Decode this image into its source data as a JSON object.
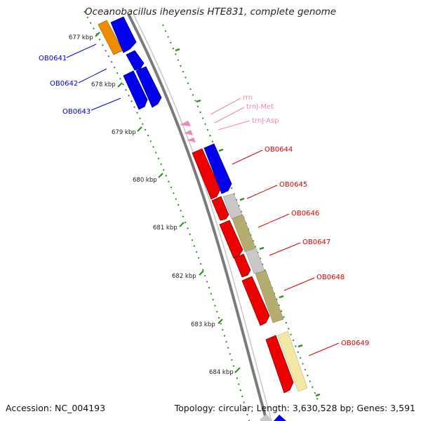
{
  "title": "Oceanobacillus iheyensis HTE831, complete genome",
  "accession_label": "Accession: NC_004193",
  "topology_label": "Topology: circular; Length: 3,630,528 bp; Genes: 3,591",
  "scale_labels": [
    "677 kbp",
    "678 kbp",
    "679 kbp",
    "680 kbp",
    "681 kbp",
    "682 kbp",
    "683 kbp",
    "684 kbp"
  ],
  "colors": {
    "backbone": "#8a8a8a",
    "scale": "#2e8b22",
    "blue_gene": "#0000ee",
    "red_gene": "#ee0000",
    "orange_gene": "#f08c00",
    "rna": "#ee88bb",
    "khaki": "#b5ad70",
    "grey": "#c8c8c8",
    "pale_yellow": "#f2e7a4"
  },
  "features": [
    {
      "label": "OB0641",
      "strand": "blue"
    },
    {
      "label": "OB0642",
      "strand": "blue"
    },
    {
      "label": "OB0643",
      "strand": "blue"
    },
    {
      "label": "rrn",
      "strand": "rna"
    },
    {
      "label": "trnJ-Met",
      "strand": "rna"
    },
    {
      "label": "trnJ-Asp",
      "strand": "rna"
    },
    {
      "label": "OB0644",
      "strand": "red"
    },
    {
      "label": "OB0645",
      "strand": "red"
    },
    {
      "label": "OB0646",
      "strand": "red"
    },
    {
      "label": "OB0647",
      "strand": "red"
    },
    {
      "label": "OB0648",
      "strand": "red"
    },
    {
      "label": "OB0649",
      "strand": "red"
    }
  ]
}
